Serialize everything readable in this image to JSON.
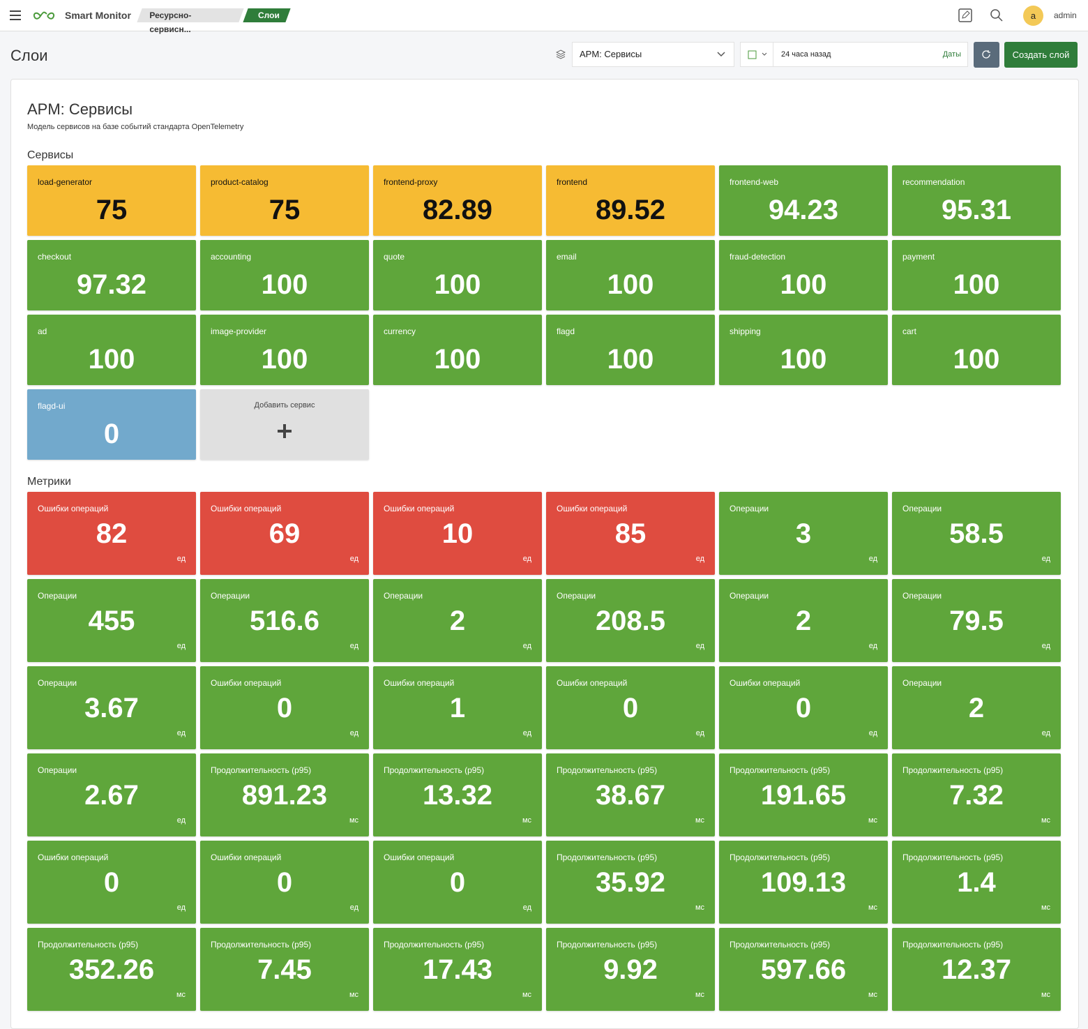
{
  "header": {
    "app_name": "Smart Monitor",
    "breadcrumbs": [
      "Ресурсно-сервисн...",
      "Слои"
    ],
    "avatar": "a",
    "user": "admin"
  },
  "toolbar": {
    "page_title": "Слои",
    "layer_select": "APM: Сервисы",
    "time_range": "24 часа назад",
    "dates_button": "Даты",
    "create_button": "Создать слой"
  },
  "panel": {
    "title": "APM: Сервисы",
    "subtitle": "Модель сервисов на базе событий стандарта OpenTelemetry",
    "services_heading": "Сервисы",
    "metrics_heading": "Метрики",
    "add_service": "Добавить сервис"
  },
  "services": [
    {
      "name": "load-generator",
      "value": 75,
      "color": "#f6bb33"
    },
    {
      "name": "product-catalog",
      "value": 75,
      "color": "#f6bb33"
    },
    {
      "name": "frontend-proxy",
      "value": 82.89,
      "color": "#f6bb33"
    },
    {
      "name": "frontend",
      "value": 89.52,
      "color": "#f6bb33"
    },
    {
      "name": "frontend-web",
      "value": 94.23,
      "color": "#5fa63b"
    },
    {
      "name": "recommendation",
      "value": 95.31,
      "color": "#5fa63b"
    },
    {
      "name": "checkout",
      "value": 97.32,
      "color": "#5fa63b"
    },
    {
      "name": "accounting",
      "value": 100,
      "color": "#5fa63b"
    },
    {
      "name": "quote",
      "value": 100,
      "color": "#5fa63b"
    },
    {
      "name": "email",
      "value": 100,
      "color": "#5fa63b"
    },
    {
      "name": "fraud-detection",
      "value": 100,
      "color": "#5fa63b"
    },
    {
      "name": "payment",
      "value": 100,
      "color": "#5fa63b"
    },
    {
      "name": "ad",
      "value": 100,
      "color": "#5fa63b"
    },
    {
      "name": "image-provider",
      "value": 100,
      "color": "#5fa63b"
    },
    {
      "name": "currency",
      "value": 100,
      "color": "#5fa63b"
    },
    {
      "name": "flagd",
      "value": 100,
      "color": "#5fa63b"
    },
    {
      "name": "shipping",
      "value": 100,
      "color": "#5fa63b"
    },
    {
      "name": "cart",
      "value": 100,
      "color": "#5fa63b"
    },
    {
      "name": "flagd-ui",
      "value": 0,
      "color": "#72a9cc"
    }
  ],
  "metrics": [
    {
      "label": "Ошибки операций",
      "value": 82,
      "unit": "ед",
      "color": "#df4c40"
    },
    {
      "label": "Ошибки операций",
      "value": 69,
      "unit": "ед",
      "color": "#df4c40"
    },
    {
      "label": "Ошибки операций",
      "value": 10,
      "unit": "ед",
      "color": "#df4c40"
    },
    {
      "label": "Ошибки операций",
      "value": 85,
      "unit": "ед",
      "color": "#df4c40"
    },
    {
      "label": "Операции",
      "value": 3,
      "unit": "ед",
      "color": "#5fa63b"
    },
    {
      "label": "Операции",
      "value": 58.5,
      "unit": "ед",
      "color": "#5fa63b"
    },
    {
      "label": "Операции",
      "value": 455,
      "unit": "ед",
      "color": "#5fa63b"
    },
    {
      "label": "Операции",
      "value": 516.6,
      "unit": "ед",
      "color": "#5fa63b"
    },
    {
      "label": "Операции",
      "value": 2,
      "unit": "ед",
      "color": "#5fa63b"
    },
    {
      "label": "Операции",
      "value": 208.5,
      "unit": "ед",
      "color": "#5fa63b"
    },
    {
      "label": "Операции",
      "value": 2,
      "unit": "ед",
      "color": "#5fa63b"
    },
    {
      "label": "Операции",
      "value": 79.5,
      "unit": "ед",
      "color": "#5fa63b"
    },
    {
      "label": "Операции",
      "value": 3.67,
      "unit": "ед",
      "color": "#5fa63b"
    },
    {
      "label": "Ошибки операций",
      "value": 0,
      "unit": "ед",
      "color": "#5fa63b"
    },
    {
      "label": "Ошибки операций",
      "value": 1,
      "unit": "ед",
      "color": "#5fa63b"
    },
    {
      "label": "Ошибки операций",
      "value": 0,
      "unit": "ед",
      "color": "#5fa63b"
    },
    {
      "label": "Ошибки операций",
      "value": 0,
      "unit": "ед",
      "color": "#5fa63b"
    },
    {
      "label": "Операции",
      "value": 2,
      "unit": "ед",
      "color": "#5fa63b"
    },
    {
      "label": "Операции",
      "value": 2.67,
      "unit": "ед",
      "color": "#5fa63b"
    },
    {
      "label": "Продолжительность (p95)",
      "value": 891.23,
      "unit": "мс",
      "color": "#5fa63b"
    },
    {
      "label": "Продолжительность (p95)",
      "value": 13.32,
      "unit": "мс",
      "color": "#5fa63b"
    },
    {
      "label": "Продолжительность (p95)",
      "value": 38.67,
      "unit": "мс",
      "color": "#5fa63b"
    },
    {
      "label": "Продолжительность (p95)",
      "value": 191.65,
      "unit": "мс",
      "color": "#5fa63b"
    },
    {
      "label": "Продолжительность (p95)",
      "value": 7.32,
      "unit": "мс",
      "color": "#5fa63b"
    },
    {
      "label": "Ошибки операций",
      "value": 0,
      "unit": "ед",
      "color": "#5fa63b"
    },
    {
      "label": "Ошибки операций",
      "value": 0,
      "unit": "ед",
      "color": "#5fa63b"
    },
    {
      "label": "Ошибки операций",
      "value": 0,
      "unit": "ед",
      "color": "#5fa63b"
    },
    {
      "label": "Продолжительность (p95)",
      "value": 35.92,
      "unit": "мс",
      "color": "#5fa63b"
    },
    {
      "label": "Продолжительность (p95)",
      "value": 109.13,
      "unit": "мс",
      "color": "#5fa63b"
    },
    {
      "label": "Продолжительность (p95)",
      "value": 1.4,
      "unit": "мс",
      "color": "#5fa63b"
    },
    {
      "label": "Продолжительность (p95)",
      "value": 352.26,
      "unit": "мс",
      "color": "#5fa63b"
    },
    {
      "label": "Продолжительность (p95)",
      "value": 7.45,
      "unit": "мс",
      "color": "#5fa63b"
    },
    {
      "label": "Продолжительность (p95)",
      "value": 17.43,
      "unit": "мс",
      "color": "#5fa63b"
    },
    {
      "label": "Продолжительность (p95)",
      "value": 9.92,
      "unit": "мс",
      "color": "#5fa63b"
    },
    {
      "label": "Продолжительность (p95)",
      "value": 597.66,
      "unit": "мс",
      "color": "#5fa63b"
    },
    {
      "label": "Продолжительность (p95)",
      "value": 12.37,
      "unit": "мс",
      "color": "#5fa63b"
    }
  ]
}
